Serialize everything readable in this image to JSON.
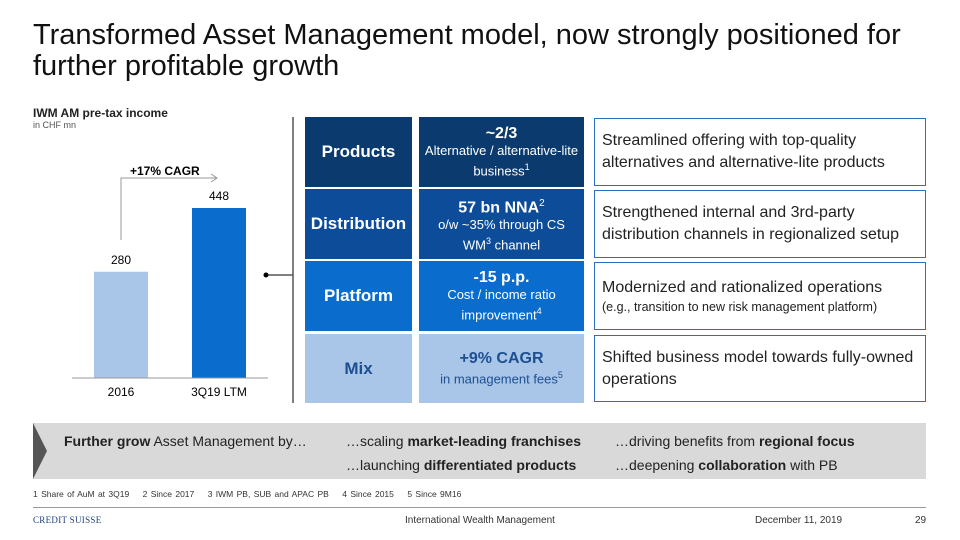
{
  "title": "Transformed Asset Management model, now strongly positioned for further profitable growth",
  "chart": {
    "title": "IWM AM pre-tax income",
    "unit": "in CHF mn",
    "cagr_label": "+17% CAGR"
  },
  "chart_data": {
    "type": "bar",
    "title": "IWM AM pre-tax income",
    "ylabel": "in CHF mn",
    "categories": [
      "2016",
      "3Q19 LTM"
    ],
    "values": [
      280,
      448
    ],
    "colors": [
      "#a9c6e8",
      "#0a6ccc"
    ],
    "annotation": "+17% CAGR"
  },
  "rows": [
    {
      "label": "Products",
      "color": "#0b3a6e",
      "big": "~2/3",
      "text": "Alternative / alternative-lite business",
      "sup": "1",
      "right": "Streamlined offering with top-quality alternatives and alternative-lite products",
      "right_small": ""
    },
    {
      "label": "Distribution",
      "color": "#0c4c98",
      "big": "57 bn NNA",
      "big_sup": "2",
      "text": "o/w ~35% through CS WM",
      "sup": "3",
      "text_after": " channel",
      "right": "Strengthened internal and 3rd-party distribution channels in regionalized setup",
      "right_small": ""
    },
    {
      "label": "Platform",
      "color": "#0a6ccc",
      "big": "-15 p.p.",
      "text": "Cost / income ratio improvement",
      "sup": "4",
      "right": "Modernized and rationalized operations",
      "right_small": "(e.g., transition to new risk management platform)"
    },
    {
      "label": "Mix",
      "color": "#a9c6e8",
      "big": "+9% CAGR",
      "text": "in management fees",
      "sup": "5",
      "right": "Shifted business model towards fully-owned operations",
      "right_small": ""
    }
  ],
  "banner": {
    "lead_bold": "Further grow",
    "lead": " Asset Management by…",
    "items": [
      {
        "pre": "…scaling ",
        "bold": "market-leading franchises",
        "post": ""
      },
      {
        "pre": "…driving benefits from ",
        "bold": "regional focus",
        "post": ""
      },
      {
        "pre": "…launching ",
        "bold": "differentiated products",
        "post": ""
      },
      {
        "pre": "…deepening ",
        "bold": "collaboration",
        "post": " with PB"
      }
    ]
  },
  "footnotes": "1 Share of AuM at 3Q19    2 Since 2017    3 IWM PB, SUB and APAC PB    4 Since 2015    5 Since 9M16",
  "footer": {
    "logo": "CREDIT SUISSE",
    "center": "International Wealth Management",
    "date": "December 11, 2019",
    "page": "29"
  }
}
